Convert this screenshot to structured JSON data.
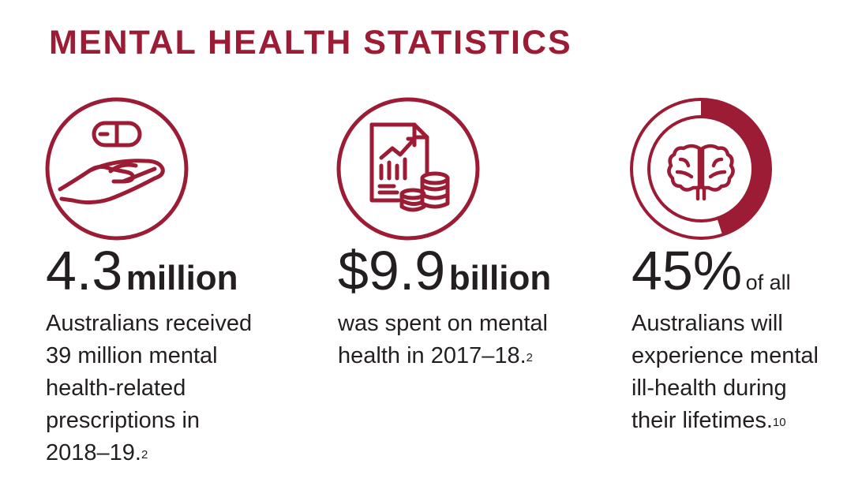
{
  "title": "MENTAL HEALTH STATISTICS",
  "accent_color": "#9b1c34",
  "stats": [
    {
      "icon": "hand-pill-icon",
      "number": "4.3",
      "unit": "million",
      "description_lines": [
        "Australians received",
        "39 million mental",
        "health-related",
        "prescriptions in"
      ],
      "description_last": "2018–19.",
      "footnote": "2"
    },
    {
      "icon": "financial-report-coins-icon",
      "number": "$9.9",
      "unit": "billion",
      "description_lines": [
        "was spent on mental"
      ],
      "description_last": "health in 2017–18.",
      "footnote": "2"
    },
    {
      "icon": "brain-ring-icon",
      "number": "45%",
      "unit": "of all",
      "progress_fraction": 0.45,
      "description_lines": [
        "Australians will",
        "experience mental",
        "ill-health during"
      ],
      "description_last": "their lifetimes.",
      "footnote": "10"
    }
  ]
}
